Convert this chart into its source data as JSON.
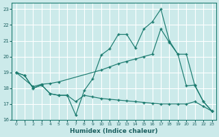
{
  "xlabel": "Humidex (Indice chaleur)",
  "bg_color": "#cceaea",
  "grid_color": "#ffffff",
  "line_color": "#1a7a6e",
  "xlim": [
    -0.5,
    23.5
  ],
  "ylim": [
    16,
    23.4
  ],
  "yticks": [
    16,
    17,
    18,
    19,
    20,
    21,
    22,
    23
  ],
  "xticks": [
    0,
    1,
    2,
    3,
    4,
    5,
    6,
    7,
    8,
    9,
    10,
    11,
    12,
    13,
    14,
    15,
    16,
    17,
    18,
    19,
    20,
    21,
    22,
    23
  ],
  "line_top_x": [
    0,
    1,
    2,
    3,
    4,
    5,
    6,
    7,
    8,
    9,
    10,
    11,
    12,
    13,
    14,
    15,
    16,
    17,
    18,
    19,
    20,
    21,
    22,
    23
  ],
  "line_top_y": [
    19.0,
    18.8,
    18.0,
    18.2,
    17.65,
    17.55,
    17.55,
    16.3,
    17.85,
    18.6,
    20.1,
    20.5,
    21.4,
    21.4,
    20.55,
    21.75,
    22.2,
    23.0,
    21.0,
    20.15,
    18.15,
    18.2,
    17.15,
    16.55
  ],
  "line_mid_x": [
    0,
    2,
    3,
    4,
    5,
    10,
    11,
    12,
    13,
    14,
    15,
    16,
    17,
    18,
    19,
    20,
    21,
    22,
    23
  ],
  "line_mid_y": [
    19.0,
    18.1,
    18.25,
    18.3,
    18.4,
    19.15,
    19.35,
    19.55,
    19.7,
    19.85,
    20.0,
    20.15,
    21.75,
    20.9,
    20.15,
    20.15,
    18.15,
    17.15,
    16.55
  ],
  "line_bot_x": [
    0,
    1,
    2,
    3,
    4,
    5,
    6,
    7,
    8,
    9,
    10,
    11,
    12,
    13,
    14,
    15,
    16,
    17,
    18,
    19,
    20,
    21,
    22,
    23
  ],
  "line_bot_y": [
    19.0,
    18.8,
    18.0,
    18.2,
    17.65,
    17.55,
    17.55,
    17.15,
    17.55,
    17.45,
    17.35,
    17.3,
    17.25,
    17.2,
    17.15,
    17.1,
    17.05,
    17.0,
    17.0,
    17.0,
    17.0,
    17.15,
    16.85,
    16.55
  ]
}
